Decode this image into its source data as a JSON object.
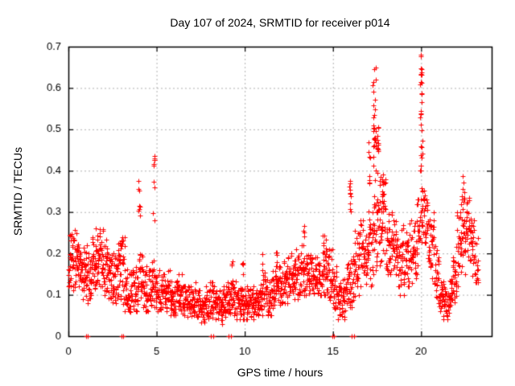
{
  "figure": {
    "title": "Day 107 of 2024, SRMTID for receiver p014",
    "xlabel": "GPS time / hours",
    "ylabel": "SRMTID / TECUs"
  },
  "chart_data": {
    "type": "scatter",
    "title": "Day 107 of 2024, SRMTID for receiver p014",
    "xlabel": "GPS time / hours",
    "ylabel": "SRMTID / TECUs",
    "xlim": [
      0,
      24
    ],
    "ylim": [
      0,
      0.7
    ],
    "xticks": [
      {
        "v": 0,
        "label": "0"
      },
      {
        "v": 5,
        "label": "5"
      },
      {
        "v": 10,
        "label": "10"
      },
      {
        "v": 15,
        "label": "15"
      },
      {
        "v": 20,
        "label": "20"
      }
    ],
    "yticks": [
      {
        "v": 0,
        "label": "0"
      },
      {
        "v": 0.1,
        "label": "0.1"
      },
      {
        "v": 0.2,
        "label": "0.2"
      },
      {
        "v": 0.3,
        "label": "0.3"
      },
      {
        "v": 0.4,
        "label": "0.4"
      },
      {
        "v": 0.5,
        "label": "0.5"
      },
      {
        "v": 0.6,
        "label": "0.6"
      },
      {
        "v": 0.7,
        "label": "0.7"
      }
    ],
    "grid": true,
    "grid_style": "dashed-gray",
    "grid_color": "#b0b0b0",
    "marker": "plus",
    "marker_color": "#ff0000",
    "legend": "none",
    "series_name": "SRMTID",
    "band_bins_format": [
      "x_start_hour",
      "y_min_TECU",
      "y_max_TECU",
      "point_count"
    ],
    "band_bin_width_hours": 0.25,
    "band_bins": [
      [
        0.0,
        0.12,
        0.28,
        26
      ],
      [
        0.25,
        0.11,
        0.26,
        26
      ],
      [
        0.5,
        0.1,
        0.24,
        26
      ],
      [
        0.75,
        0.09,
        0.22,
        26
      ],
      [
        1.0,
        0.08,
        0.22,
        26
      ],
      [
        1.25,
        0.1,
        0.24,
        26
      ],
      [
        1.5,
        0.1,
        0.26,
        26
      ],
      [
        1.75,
        0.12,
        0.28,
        26
      ],
      [
        2.0,
        0.1,
        0.24,
        26
      ],
      [
        2.25,
        0.08,
        0.22,
        26
      ],
      [
        2.5,
        0.08,
        0.2,
        26
      ],
      [
        2.75,
        0.09,
        0.23,
        26
      ],
      [
        3.0,
        0.06,
        0.24,
        26
      ],
      [
        3.25,
        0.06,
        0.18,
        24
      ],
      [
        3.5,
        0.05,
        0.16,
        24
      ],
      [
        3.75,
        0.06,
        0.18,
        24
      ],
      [
        4.0,
        0.07,
        0.2,
        24
      ],
      [
        4.25,
        0.06,
        0.17,
        24
      ],
      [
        4.5,
        0.06,
        0.16,
        24
      ],
      [
        4.75,
        0.07,
        0.19,
        24
      ],
      [
        5.0,
        0.06,
        0.16,
        24
      ],
      [
        5.25,
        0.06,
        0.15,
        24
      ],
      [
        5.5,
        0.06,
        0.16,
        24
      ],
      [
        5.75,
        0.05,
        0.14,
        24
      ],
      [
        6.0,
        0.05,
        0.14,
        24
      ],
      [
        6.25,
        0.05,
        0.15,
        24
      ],
      [
        6.5,
        0.04,
        0.12,
        24
      ],
      [
        6.75,
        0.04,
        0.12,
        24
      ],
      [
        7.0,
        0.04,
        0.13,
        24
      ],
      [
        7.25,
        0.03,
        0.11,
        24
      ],
      [
        7.5,
        0.03,
        0.1,
        24
      ],
      [
        7.75,
        0.04,
        0.12,
        24
      ],
      [
        8.0,
        0.04,
        0.13,
        24
      ],
      [
        8.25,
        0.04,
        0.12,
        24
      ],
      [
        8.5,
        0.03,
        0.11,
        24
      ],
      [
        8.75,
        0.04,
        0.12,
        24
      ],
      [
        9.0,
        0.04,
        0.13,
        24
      ],
      [
        9.25,
        0.05,
        0.14,
        24
      ],
      [
        9.5,
        0.04,
        0.12,
        24
      ],
      [
        9.75,
        0.04,
        0.13,
        24
      ],
      [
        10.0,
        0.04,
        0.12,
        24
      ],
      [
        10.25,
        0.04,
        0.12,
        24
      ],
      [
        10.5,
        0.05,
        0.13,
        24
      ],
      [
        10.75,
        0.05,
        0.16,
        24
      ],
      [
        11.0,
        0.05,
        0.16,
        24
      ],
      [
        11.25,
        0.05,
        0.14,
        24
      ],
      [
        11.5,
        0.06,
        0.16,
        24
      ],
      [
        11.75,
        0.07,
        0.17,
        24
      ],
      [
        12.0,
        0.07,
        0.18,
        24
      ],
      [
        12.25,
        0.08,
        0.19,
        24
      ],
      [
        12.5,
        0.08,
        0.2,
        24
      ],
      [
        12.75,
        0.09,
        0.21,
        24
      ],
      [
        13.0,
        0.1,
        0.22,
        24
      ],
      [
        13.25,
        0.1,
        0.22,
        24
      ],
      [
        13.5,
        0.1,
        0.2,
        24
      ],
      [
        13.75,
        0.09,
        0.19,
        24
      ],
      [
        14.0,
        0.1,
        0.2,
        24
      ],
      [
        14.25,
        0.1,
        0.22,
        24
      ],
      [
        14.5,
        0.1,
        0.23,
        24
      ],
      [
        14.75,
        0.08,
        0.21,
        24
      ],
      [
        15.0,
        0.05,
        0.17,
        24
      ],
      [
        15.25,
        0.04,
        0.15,
        24
      ],
      [
        15.5,
        0.04,
        0.16,
        24
      ],
      [
        15.75,
        0.05,
        0.18,
        24
      ],
      [
        16.0,
        0.07,
        0.2,
        24
      ],
      [
        16.25,
        0.1,
        0.26,
        24
      ],
      [
        16.5,
        0.12,
        0.28,
        24
      ],
      [
        16.75,
        0.12,
        0.25,
        24
      ],
      [
        17.0,
        0.12,
        0.33,
        24
      ],
      [
        17.25,
        0.15,
        0.38,
        24
      ],
      [
        17.5,
        0.16,
        0.4,
        24
      ],
      [
        17.75,
        0.2,
        0.38,
        24
      ],
      [
        18.0,
        0.15,
        0.33,
        24
      ],
      [
        18.25,
        0.15,
        0.3,
        24
      ],
      [
        18.5,
        0.12,
        0.28,
        24
      ],
      [
        18.75,
        0.1,
        0.27,
        24
      ],
      [
        19.0,
        0.1,
        0.25,
        24
      ],
      [
        19.25,
        0.12,
        0.28,
        24
      ],
      [
        19.5,
        0.14,
        0.3,
        24
      ],
      [
        19.75,
        0.17,
        0.33,
        24
      ],
      [
        20.0,
        0.18,
        0.37,
        26
      ],
      [
        20.25,
        0.18,
        0.33,
        24
      ],
      [
        20.5,
        0.14,
        0.3,
        24
      ],
      [
        20.75,
        0.09,
        0.22,
        24
      ],
      [
        21.0,
        0.05,
        0.14,
        26
      ],
      [
        21.25,
        0.04,
        0.12,
        26
      ],
      [
        21.5,
        0.05,
        0.15,
        24
      ],
      [
        21.75,
        0.08,
        0.2,
        24
      ],
      [
        22.0,
        0.12,
        0.3,
        24
      ],
      [
        22.25,
        0.15,
        0.37,
        24
      ],
      [
        22.5,
        0.15,
        0.34,
        24
      ],
      [
        22.75,
        0.14,
        0.31,
        24
      ],
      [
        23.0,
        0.13,
        0.28,
        20
      ]
    ],
    "spike_clusters_format": [
      "x_center_hour",
      "x_width_hours",
      "y_min_TECU",
      "y_max_TECU",
      "point_count"
    ],
    "spike_clusters": [
      [
        4.0,
        0.12,
        0.27,
        0.385,
        8
      ],
      [
        4.85,
        0.1,
        0.26,
        0.45,
        10
      ],
      [
        9.3,
        0.06,
        0.15,
        0.19,
        3
      ],
      [
        9.9,
        0.08,
        0.14,
        0.19,
        4
      ],
      [
        11.0,
        0.08,
        0.16,
        0.21,
        4
      ],
      [
        11.8,
        0.08,
        0.17,
        0.22,
        4
      ],
      [
        13.35,
        0.08,
        0.22,
        0.27,
        4
      ],
      [
        14.5,
        0.2,
        0.2,
        0.245,
        6
      ],
      [
        16.0,
        0.12,
        0.3,
        0.385,
        10
      ],
      [
        17.05,
        0.1,
        0.33,
        0.47,
        8
      ],
      [
        17.35,
        0.18,
        0.4,
        0.655,
        28
      ],
      [
        17.55,
        0.12,
        0.35,
        0.52,
        10
      ],
      [
        17.8,
        0.15,
        0.25,
        0.4,
        10
      ],
      [
        20.0,
        0.12,
        0.38,
        0.475,
        10
      ],
      [
        20.0,
        0.1,
        0.49,
        0.545,
        6
      ],
      [
        20.0,
        0.08,
        0.565,
        0.615,
        6
      ],
      [
        20.0,
        0.08,
        0.63,
        0.685,
        8
      ],
      [
        22.35,
        0.15,
        0.3,
        0.445,
        10
      ]
    ],
    "zero_value_points_hours": [
      1.0,
      1.08,
      3.0,
      3.08,
      8.08,
      8.2,
      9.08,
      9.2,
      14.97,
      15.05,
      16.07,
      16.2
    ],
    "y_max_observed": 0.685,
    "y_max_observed_hour": 20.0
  }
}
